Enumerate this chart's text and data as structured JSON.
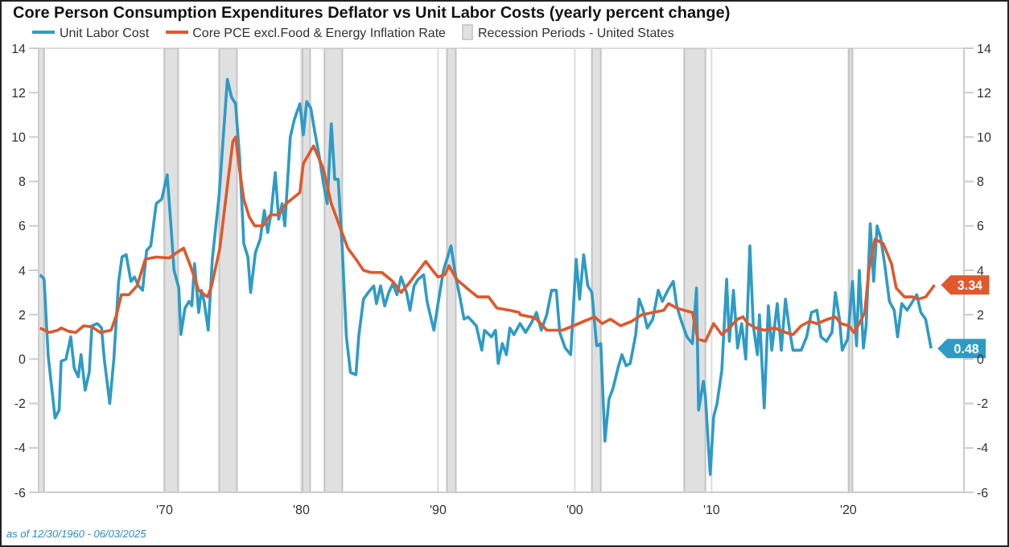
{
  "chart_data": {
    "type": "line",
    "title": "Core Person Consumption Expenditures  Deflator vs Unit Labor Costs (yearly percent change)",
    "annotations": [
      "as of 12/30/1960 - 06/03/2025",
      {
        "text": "3.34",
        "x": 2026.3,
        "y": 3.34
      },
      {
        "text": "0.48",
        "x": 2026.05,
        "y": 0.48
      }
    ],
    "series": [
      {
        "name": "Unit Labor Cost",
        "color": "#2e9bc6",
        "x": [
          1960.9,
          1961.2,
          1961.5,
          1962.0,
          1962.3,
          1962.45,
          1962.8,
          1963.15,
          1963.4,
          1963.7,
          1963.9,
          1964.2,
          1964.5,
          1964.7,
          1965.1,
          1965.4,
          1965.6,
          1966.0,
          1966.3,
          1966.65,
          1966.9,
          1967.2,
          1967.55,
          1967.8,
          1968.1,
          1968.4,
          1968.7,
          1969.0,
          1969.4,
          1969.8,
          1970.2,
          1970.5,
          1970.7,
          1971.05,
          1971.2,
          1971.5,
          1971.8,
          1972.0,
          1972.2,
          1972.5,
          1972.7,
          1972.9,
          1973.2,
          1973.5,
          1974.0,
          1974.3,
          1974.6,
          1974.9,
          1975.2,
          1975.5,
          1975.8,
          1976.1,
          1976.3,
          1976.65,
          1977.0,
          1977.3,
          1977.55,
          1977.8,
          1978.1,
          1978.35,
          1978.6,
          1978.8,
          1979.2,
          1979.5,
          1979.9,
          1980.15,
          1980.4,
          1980.7,
          1981.0,
          1981.3,
          1981.6,
          1981.9,
          1982.2,
          1982.45,
          1982.7,
          1983.0,
          1983.3,
          1983.6,
          1984.0,
          1984.2,
          1984.55,
          1984.9,
          1985.3,
          1985.5,
          1985.8,
          1986.1,
          1986.4,
          1986.7,
          1987.0,
          1987.3,
          1987.7,
          1987.95,
          1988.25,
          1988.55,
          1988.95,
          1989.2,
          1989.5,
          1989.7,
          1990.0,
          1990.4,
          1990.95,
          1991.3,
          1991.6,
          1991.9,
          1992.2,
          1992.5,
          1992.8,
          1993.2,
          1993.4,
          1993.9,
          1994.2,
          1994.4,
          1994.7,
          1995.0,
          1995.25,
          1995.55,
          1996.0,
          1996.4,
          1996.8,
          1997.2,
          1997.55,
          1997.95,
          1998.3,
          1998.65,
          1998.9,
          1999.3,
          1999.7,
          2000.1,
          2000.35,
          2000.65,
          2000.95,
          2001.25,
          2001.6,
          2001.9,
          2002.2,
          2002.5,
          2002.8,
          2003.2,
          2003.45,
          2003.75,
          2004.05,
          2004.45,
          2004.7,
          2005.0,
          2005.3,
          2005.7,
          2006.1,
          2006.4,
          2006.8,
          2007.2,
          2007.45,
          2007.85,
          2008.2,
          2008.6,
          2008.9,
          2009.05,
          2009.4,
          2009.55,
          2009.9,
          2010.15,
          2010.4,
          2010.75,
          2011.1,
          2011.3,
          2011.6,
          2011.9,
          2012.2,
          2012.5,
          2012.8,
          2013.05,
          2013.35,
          2013.5,
          2013.85,
          2014.15,
          2014.4,
          2014.8,
          2015.1,
          2015.4,
          2015.7,
          2015.95,
          2016.55,
          2016.95,
          2017.3,
          2017.7,
          2018.0,
          2018.4,
          2018.8,
          2019.05,
          2019.35,
          2019.55,
          2019.95,
          2020.3,
          2020.6,
          2020.8,
          2021.1,
          2021.3,
          2021.6,
          2021.85,
          2022.1,
          2022.35,
          2022.65,
          2023.0,
          2023.35,
          2023.6,
          2023.9,
          2024.3,
          2024.7,
          2025.0,
          2025.3,
          2025.65,
          2026.05
        ],
        "values": [
          3.8,
          3.6,
          0.15,
          -2.65,
          -2.3,
          -0.1,
          0,
          1.0,
          -0.4,
          -0.8,
          0.2,
          -1.4,
          -0.6,
          1.5,
          1.6,
          1.4,
          0,
          -2.0,
          0,
          3.5,
          4.6,
          4.7,
          3.5,
          3.7,
          3.3,
          3.1,
          4.9,
          5.1,
          7.0,
          7.2,
          8.3,
          5.8,
          4.0,
          3.2,
          1.1,
          2.3,
          2.6,
          2.4,
          4.3,
          2.1,
          3.1,
          2.6,
          1.3,
          4.5,
          7.4,
          10.0,
          12.6,
          11.8,
          11.5,
          9.0,
          5.2,
          4.6,
          3.0,
          4.8,
          5.4,
          6.7,
          5.7,
          6.6,
          8.4,
          6.3,
          7.0,
          6.0,
          10.0,
          10.8,
          11.5,
          10.1,
          11.6,
          11.3,
          10.2,
          9.2,
          8.0,
          7.0,
          10.6,
          8.1,
          8.1,
          5.0,
          1.0,
          -0.6,
          -0.7,
          1.0,
          2.7,
          3.0,
          3.3,
          2.5,
          3.3,
          2.4,
          3.0,
          3.4,
          2.9,
          3.7,
          3.0,
          2.2,
          3.3,
          3.6,
          3.8,
          2.6,
          1.8,
          1.3,
          2.5,
          4.0,
          5.1,
          3.7,
          2.8,
          1.8,
          1.9,
          1.7,
          1.5,
          0.4,
          1.3,
          1.0,
          1.3,
          -0.2,
          0.7,
          0.2,
          1.4,
          1.1,
          1.6,
          1.2,
          1.6,
          2.1,
          1.3,
          2.0,
          3.1,
          3.1,
          1.2,
          0.5,
          0.2,
          4.5,
          2.7,
          4.7,
          3.3,
          3.0,
          0.6,
          0.7,
          -3.7,
          -1.8,
          -1.3,
          -0.3,
          0.2,
          -0.3,
          -0.2,
          1.1,
          2.7,
          2.2,
          1.4,
          1.8,
          3.1,
          2.6,
          3.1,
          3.5,
          2.4,
          1.6,
          1.0,
          0.7,
          3.2,
          -2.3,
          -1.0,
          -1.7,
          -5.2,
          -2.6,
          -2.0,
          -0.5,
          3.6,
          0.8,
          3.1,
          0.5,
          1.6,
          0.0,
          5.1,
          1.5,
          0.2,
          2.0,
          -2.2,
          2.4,
          0.4,
          2.5,
          0.4,
          2.7,
          1.3,
          0.4,
          0.4,
          1.0,
          2.1,
          2.2,
          1.0,
          0.8,
          1.2,
          3.0,
          1.8,
          0.4,
          0.9,
          3.5,
          0.6,
          4.0,
          0.5,
          1.5,
          6.1,
          3.5,
          6.0,
          5.5,
          4.3,
          2.6,
          2.2,
          1.0,
          2.5,
          2.2,
          2.6,
          2.9,
          2.1,
          1.8,
          0.48
        ]
      },
      {
        "name": "Core PCE excl.Food & Energy Inflation Rate",
        "color": "#e0582b",
        "x": [
          1960.9,
          1961.6,
          1962.2,
          1962.45,
          1963.0,
          1963.5,
          1964.1,
          1964.7,
          1965.3,
          1966.1,
          1966.5,
          1966.85,
          1967.4,
          1968.0,
          1968.6,
          1969.4,
          1970.35,
          1970.9,
          1971.4,
          1971.9,
          1972.5,
          1973.15,
          1973.45,
          1974.05,
          1974.6,
          1975.0,
          1975.2,
          1975.5,
          1975.8,
          1976.2,
          1976.6,
          1977.2,
          1977.75,
          1978.3,
          1978.9,
          1979.9,
          1980.15,
          1980.9,
          1981.6,
          1982.2,
          1982.8,
          1983.4,
          1984.0,
          1984.55,
          1985.1,
          1985.9,
          1986.7,
          1987.3,
          1987.85,
          1988.6,
          1989.1,
          1989.6,
          1990.0,
          1990.5,
          1990.8,
          1991.35,
          1992.1,
          1992.9,
          1993.7,
          1994.3,
          1995.25,
          1995.95,
          1996.0,
          1996.8,
          1997.2,
          1997.95,
          1999.1,
          1999.9,
          2000.65,
          2001.45,
          2002.0,
          2002.6,
          2003.35,
          2004.15,
          2004.9,
          2005.7,
          2006.5,
          2006.85,
          2007.45,
          2008.0,
          2008.6,
          2009.0,
          2009.55,
          2010.15,
          2010.75,
          2011.3,
          2011.9,
          2012.3,
          2012.65,
          2013.25,
          2013.85,
          2014.6,
          2015.4,
          2015.95,
          2016.55,
          2017.15,
          2017.7,
          2018.5,
          2019.05,
          2019.45,
          2020.05,
          2020.4,
          2020.8,
          2021.2,
          2021.5,
          2021.95,
          2022.55,
          2023.15,
          2023.5,
          2024.1,
          2024.7,
          2025.1,
          2025.65,
          2026.3
        ],
        "values": [
          1.4,
          1.2,
          1.3,
          1.4,
          1.25,
          1.2,
          1.5,
          1.45,
          1.2,
          1.3,
          2.0,
          2.9,
          2.9,
          3.3,
          4.5,
          4.6,
          4.55,
          4.8,
          5.0,
          4.2,
          3.1,
          2.8,
          3.3,
          5.0,
          7.8,
          9.8,
          10.0,
          8.5,
          7.2,
          6.4,
          6.0,
          6.0,
          6.5,
          6.5,
          7.0,
          7.5,
          8.8,
          9.6,
          8.6,
          7.0,
          6.0,
          5.0,
          4.5,
          4.0,
          3.9,
          3.9,
          3.5,
          3.0,
          3.4,
          4.0,
          4.4,
          4.0,
          3.7,
          3.8,
          4.2,
          3.6,
          3.2,
          2.8,
          2.8,
          2.3,
          2.2,
          2.1,
          2.0,
          1.9,
          1.8,
          1.3,
          1.3,
          1.5,
          1.7,
          1.9,
          1.6,
          1.8,
          1.5,
          1.7,
          2.0,
          2.1,
          2.2,
          2.5,
          2.3,
          2.2,
          2.1,
          0.9,
          0.8,
          1.6,
          1.1,
          1.4,
          1.8,
          1.9,
          1.6,
          1.4,
          1.3,
          1.4,
          1.2,
          1.1,
          1.5,
          1.7,
          1.6,
          1.8,
          1.9,
          1.6,
          1.5,
          1.2,
          1.6,
          2.1,
          4.0,
          5.4,
          5.2,
          4.3,
          3.2,
          2.8,
          2.8,
          2.7,
          2.8,
          3.34
        ]
      }
    ],
    "bands": [
      {
        "axis": "x",
        "from": 1960.8,
        "to": 1961.2,
        "label": "Recession Periods - United States",
        "color": "#e0e0e0"
      },
      {
        "axis": "x",
        "from": 1970.0,
        "to": 1971.0,
        "color": "#e0e0e0"
      },
      {
        "axis": "x",
        "from": 1974.0,
        "to": 1975.3,
        "color": "#e0e0e0"
      },
      {
        "axis": "x",
        "from": 1980.1,
        "to": 1980.65,
        "color": "#e0e0e0"
      },
      {
        "axis": "x",
        "from": 1981.7,
        "to": 1983.0,
        "color": "#e0e0e0"
      },
      {
        "axis": "x",
        "from": 1990.65,
        "to": 1991.3,
        "color": "#e0e0e0"
      },
      {
        "axis": "x",
        "from": 2001.25,
        "to": 2001.9,
        "color": "#e0e0e0"
      },
      {
        "axis": "x",
        "from": 2008.0,
        "to": 2009.55,
        "color": "#e0e0e0"
      },
      {
        "axis": "x",
        "from": 2020.05,
        "to": 2020.3,
        "color": "#e0e0e0"
      }
    ],
    "xlim": [
      1960.8,
      2028.45
    ],
    "xticks": [
      {
        "value": 1970,
        "label": "'70"
      },
      {
        "value": 1980,
        "label": "'80"
      },
      {
        "value": 1990,
        "label": "'90"
      },
      {
        "value": 2000,
        "label": "'00"
      },
      {
        "value": 2010,
        "label": "'10"
      },
      {
        "value": 2020,
        "label": "'20"
      }
    ],
    "ylim": [
      -6,
      14
    ],
    "yticks": [
      -6,
      -4,
      -2,
      0,
      2,
      4,
      6,
      8,
      10,
      12,
      14
    ],
    "y2lim": [
      -6,
      14
    ],
    "y2ticks": [
      -6,
      -4,
      -2,
      0,
      2,
      4,
      6,
      8,
      10,
      12,
      14
    ],
    "grid": true,
    "legend": "top left",
    "marker": "none",
    "line_style": "solid"
  }
}
